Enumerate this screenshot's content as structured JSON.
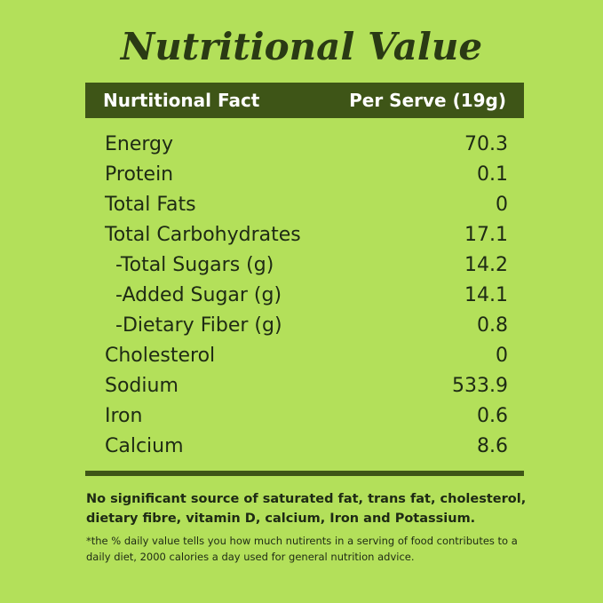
{
  "title": "Nutritional Value",
  "table": {
    "header": [
      "Nurtitional Fact",
      "Per Serve (19g)"
    ],
    "rows": [
      [
        "Energy",
        "70.3"
      ],
      [
        "Protein",
        "0.1"
      ],
      [
        "Total Fats",
        "0"
      ],
      [
        "Total Carbohydrates",
        "17.1"
      ],
      [
        "-Total Sugars (g)",
        "14.2"
      ],
      [
        "-Added Sugar (g)",
        "14.1"
      ],
      [
        "-Dietary Fiber (g)",
        "0.8"
      ],
      [
        "Cholesterol",
        "0"
      ],
      [
        "Sodium",
        "533.9"
      ],
      [
        "Iron",
        "0.6"
      ],
      [
        "Calcium",
        "8.6"
      ]
    ]
  },
  "note": "No significant source of saturated fat, trans fat, cholesterol, dietary fibre, vitamin D, calcium, Iron and Potassium.",
  "footnote": "*the % daily value tells you how much nutirents in a serving of food contributes to a daily diet, 2000 calories a day used for general nutrition advice."
}
